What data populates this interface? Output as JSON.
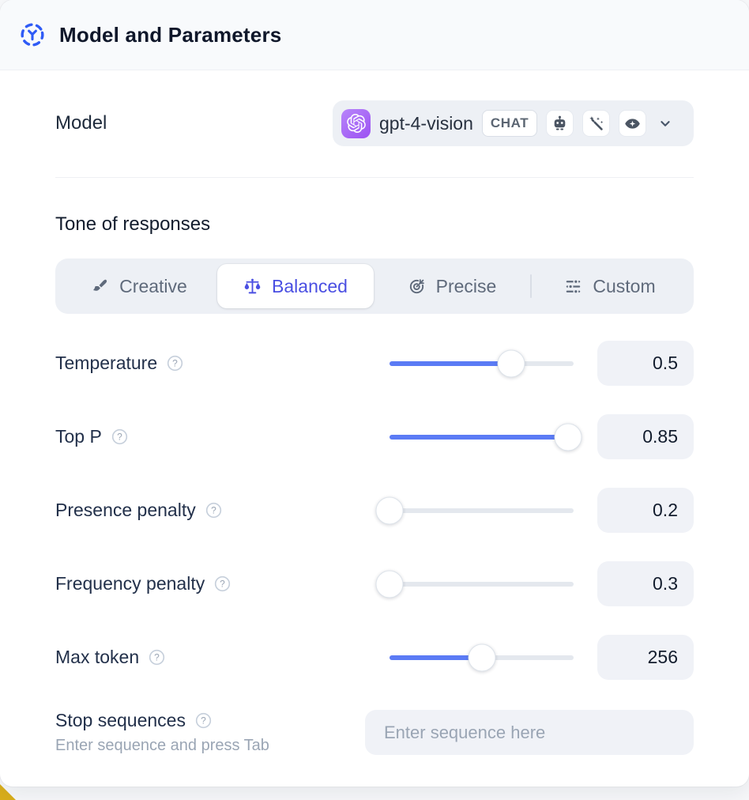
{
  "header": {
    "title": "Model and Parameters"
  },
  "model_row": {
    "label": "Model",
    "selected_model": "gpt-4-vision",
    "badge": "CHAT",
    "capability_icons": [
      "robot-icon",
      "magic-wand-icon",
      "vision-eye-icon"
    ]
  },
  "tone": {
    "heading": "Tone of responses",
    "options": [
      {
        "label": "Creative",
        "icon": "paintbrush-icon",
        "selected": false
      },
      {
        "label": "Balanced",
        "icon": "balance-scale-icon",
        "selected": true
      },
      {
        "label": "Precise",
        "icon": "target-icon",
        "selected": false
      },
      {
        "label": "Custom",
        "icon": "sliders-icon",
        "selected": false
      }
    ]
  },
  "parameters": [
    {
      "label": "Temperature",
      "value": "0.5",
      "slider_percent": 66
    },
    {
      "label": "Top P",
      "value": "0.85",
      "slider_percent": 97
    },
    {
      "label": "Presence penalty",
      "value": "0.2",
      "slider_percent": 0
    },
    {
      "label": "Frequency penalty",
      "value": "0.3",
      "slider_percent": 0
    },
    {
      "label": "Max token",
      "value": "256",
      "slider_percent": 50
    }
  ],
  "stop_sequences": {
    "label": "Stop sequences",
    "hint": "Enter sequence and press Tab",
    "placeholder": "Enter sequence here"
  },
  "colors": {
    "accent_blue": "#2f5bf6",
    "selected_indigo": "#4a4fe2",
    "slider_fill": "#5b7bf5",
    "control_bg": "#edf0f5",
    "field_bg": "#f0f2f7",
    "header_bg": "#f8fafc",
    "provider_badge": "#9c52f2",
    "corner_accent": "#d9ae1b"
  }
}
